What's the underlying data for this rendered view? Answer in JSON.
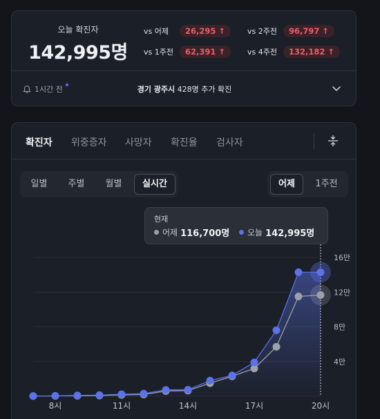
{
  "summary": {
    "today_label": "오늘 확진자",
    "today_value": "142,995명",
    "comparisons": [
      {
        "prefix": "vs",
        "label": "어제",
        "value": "26,295 ↑"
      },
      {
        "prefix": "vs",
        "label": "2주전",
        "value": "96,797 ↑"
      },
      {
        "prefix": "vs",
        "label": "1주전",
        "value": "62,391 ↑"
      },
      {
        "prefix": "vs",
        "label": "4주전",
        "value": "132,182 ↑"
      }
    ],
    "update_time": "1시간 전",
    "news_region": "경기 광주시",
    "news_rest": "428명 추가 확진"
  },
  "tabs": [
    "확진자",
    "위중증자",
    "사망자",
    "확진율",
    "검사자"
  ],
  "active_tab": 0,
  "period_options": [
    "일별",
    "주별",
    "월별",
    "실시간"
  ],
  "active_period": 3,
  "compare_options": [
    "어제",
    "1주전"
  ],
  "active_compare": 0,
  "tooltip": {
    "title": "현재",
    "yesterday_label": "어제",
    "yesterday_value": "116,700명",
    "today_label": "오늘",
    "today_value": "142,995명"
  },
  "colors": {
    "today": "#5b72e8",
    "yesterday": "#9ca1aa",
    "badge_text": "#f25a6a"
  },
  "icons": {
    "bell": "bell-icon",
    "expand": "chevron-down-icon",
    "filter": "filter-icon"
  },
  "chart_data": {
    "type": "line",
    "x": [
      "7시",
      "8시",
      "9시",
      "10시",
      "11시",
      "12시",
      "13시",
      "14시",
      "15시",
      "16시",
      "17시",
      "18시",
      "19시",
      "20시"
    ],
    "x_tick_labels": [
      "8시",
      "11시",
      "14시",
      "17시",
      "20시"
    ],
    "y_tick_labels": [
      "4만",
      "8만",
      "12만",
      "16만"
    ],
    "ylim": [
      0,
      160000
    ],
    "series": [
      {
        "name": "어제",
        "values": [
          200,
          300,
          500,
          800,
          1500,
          2000,
          6000,
          6500,
          15000,
          23000,
          32000,
          57000,
          115000,
          116700
        ]
      },
      {
        "name": "오늘",
        "values": [
          200,
          400,
          900,
          1300,
          2300,
          3000,
          7300,
          7500,
          18000,
          24000,
          39000,
          76000,
          143000,
          142995
        ]
      }
    ],
    "current_index": 13
  }
}
